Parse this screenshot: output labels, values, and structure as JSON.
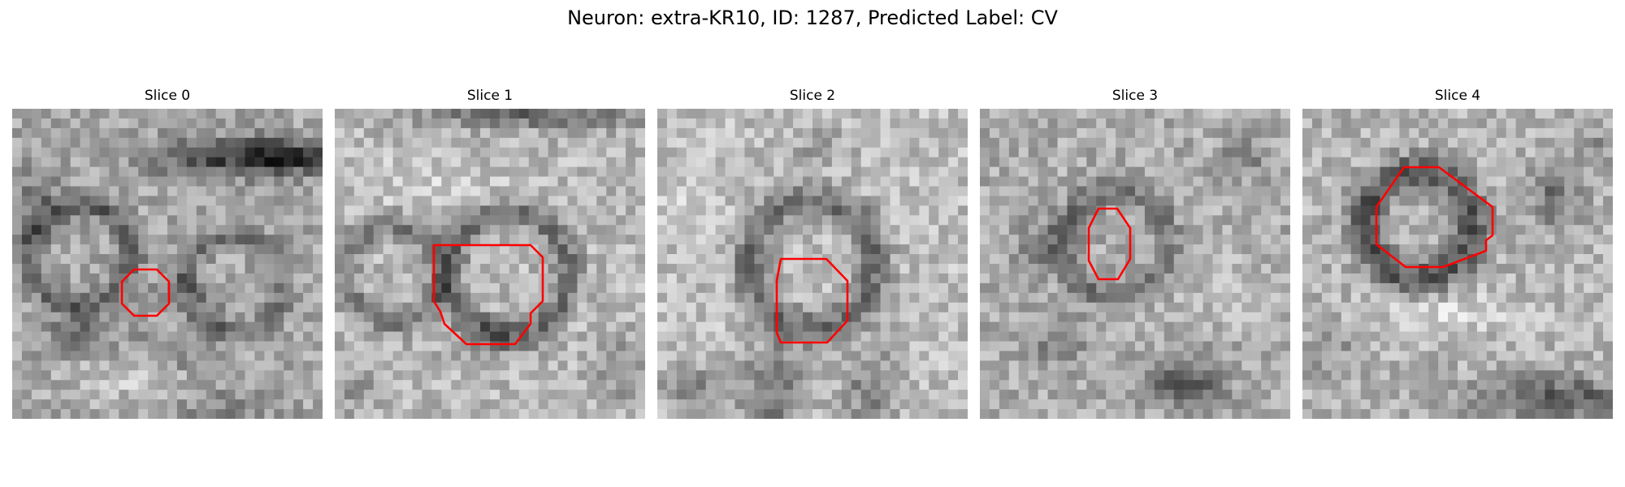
{
  "figure": {
    "title": "Neuron: extra-KR10, ID: 1287, Predicted Label: CV"
  },
  "panels": [
    {
      "title": "Slice 0"
    },
    {
      "title": "Slice 1"
    },
    {
      "title": "Slice 2"
    },
    {
      "title": "Slice 3"
    },
    {
      "title": "Slice 4"
    }
  ],
  "colors": {
    "outline": "#ff0000"
  }
}
